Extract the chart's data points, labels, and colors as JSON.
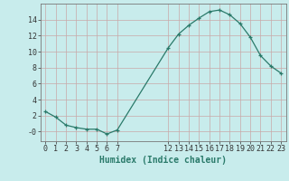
{
  "x": [
    0,
    1,
    2,
    3,
    4,
    5,
    6,
    7,
    12,
    13,
    14,
    15,
    16,
    17,
    18,
    19,
    20,
    21,
    22,
    23
  ],
  "y": [
    2.5,
    1.8,
    0.8,
    0.5,
    0.3,
    0.3,
    -0.3,
    0.2,
    10.5,
    12.2,
    13.3,
    14.2,
    15.0,
    15.2,
    14.6,
    13.5,
    11.8,
    9.5,
    8.2,
    7.3
  ],
  "line_color": "#2a7a6a",
  "marker": "+",
  "bg_color": "#c8ecec",
  "grid_color": "#c8a8a8",
  "xlabel": "Humidex (Indice chaleur)",
  "xlabel_fontsize": 7,
  "ylim": [
    -1.2,
    16.0
  ],
  "xlim": [
    -0.5,
    23.5
  ],
  "yticks": [
    0,
    2,
    4,
    6,
    8,
    10,
    12,
    14
  ],
  "ytick_labels": [
    "-0",
    "2",
    "4",
    "6",
    "8",
    "10",
    "12",
    "14"
  ],
  "xtick_labels_sparse": [
    0,
    1,
    2,
    3,
    4,
    5,
    6,
    7,
    12,
    13,
    14,
    15,
    16,
    17,
    18,
    19,
    20,
    21,
    22,
    23
  ],
  "figsize": [
    3.2,
    2.0
  ],
  "dpi": 100
}
